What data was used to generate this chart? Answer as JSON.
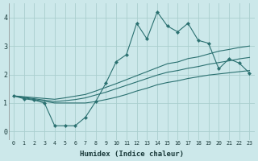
{
  "xlabel": "Humidex (Indice chaleur)",
  "bg_color": "#cce8ea",
  "grid_color": "#aacece",
  "line_color": "#2a7070",
  "x": [
    0,
    1,
    2,
    3,
    4,
    5,
    6,
    7,
    8,
    9,
    10,
    11,
    12,
    13,
    14,
    15,
    16,
    17,
    18,
    19,
    20,
    21,
    22,
    23
  ],
  "line1": [
    1.25,
    1.15,
    1.1,
    1.0,
    0.2,
    0.2,
    0.2,
    0.5,
    1.05,
    1.7,
    2.45,
    2.7,
    3.8,
    3.25,
    4.2,
    3.7,
    3.5,
    3.8,
    3.2,
    3.1,
    2.2,
    2.55,
    2.4,
    2.05
  ],
  "line2": [
    1.25,
    1.22,
    1.19,
    1.16,
    1.13,
    1.18,
    1.24,
    1.3,
    1.42,
    1.55,
    1.68,
    1.82,
    1.96,
    2.1,
    2.24,
    2.38,
    2.44,
    2.56,
    2.62,
    2.72,
    2.82,
    2.88,
    2.95,
    3.0
  ],
  "line3": [
    1.25,
    1.2,
    1.15,
    1.1,
    1.05,
    1.08,
    1.12,
    1.18,
    1.28,
    1.38,
    1.5,
    1.62,
    1.74,
    1.86,
    1.98,
    2.08,
    2.14,
    2.22,
    2.28,
    2.36,
    2.42,
    2.48,
    2.55,
    2.6
  ],
  "line4": [
    1.25,
    1.18,
    1.12,
    1.06,
    1.0,
    1.0,
    1.0,
    1.0,
    1.05,
    1.12,
    1.2,
    1.3,
    1.42,
    1.52,
    1.64,
    1.72,
    1.78,
    1.86,
    1.92,
    1.98,
    2.02,
    2.06,
    2.1,
    2.14
  ],
  "ylim": [
    -0.3,
    4.5
  ],
  "yticks": [
    0,
    1,
    2,
    3,
    4
  ],
  "xlim": [
    -0.5,
    23.5
  ]
}
